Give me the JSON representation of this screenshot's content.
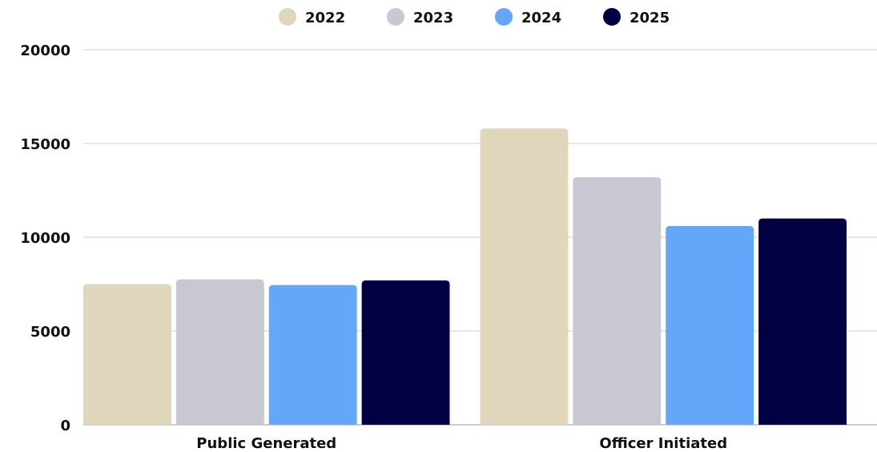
{
  "chart_data": {
    "type": "bar",
    "title": "",
    "xlabel": "",
    "ylabel": "",
    "categories": [
      "Public Generated",
      "Officer Initiated"
    ],
    "series": [
      {
        "name": "2022",
        "color": "#dfd6bb",
        "values": [
          7500,
          15800
        ]
      },
      {
        "name": "2023",
        "color": "#c8c8d2",
        "values": [
          7750,
          13200
        ]
      },
      {
        "name": "2024",
        "color": "#64a6fa",
        "values": [
          7450,
          10600
        ]
      },
      {
        "name": "2025",
        "color": "#020043",
        "values": [
          7700,
          11000
        ]
      }
    ],
    "ylim": [
      0,
      20000
    ],
    "yticks": [
      "0",
      "5000",
      "10000",
      "15000",
      "20000"
    ],
    "grid": true,
    "legend_position": "top-center"
  }
}
